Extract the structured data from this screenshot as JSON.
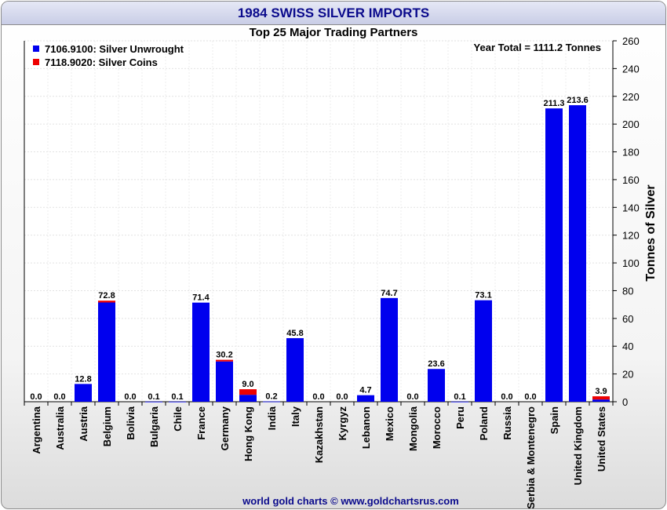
{
  "title": "1984 SWISS SILVER IMPORTS",
  "subtitle": "Top 25 Major Trading Partners",
  "year_total": "Year Total = 1111.2 Tonnes",
  "footer": "world gold charts © www.goldchartsrus.com",
  "colors": {
    "unwrought": "#0000ee",
    "coins": "#ee0000",
    "title_text": "#0a0a8c"
  },
  "chart_data": {
    "type": "bar",
    "stacked": true,
    "ylabel": "Tonnes of Silver",
    "ylim": [
      0,
      260
    ],
    "ytick_step": 20,
    "y_axis_side": "right",
    "grid": true,
    "legend_position": "top-left",
    "categories": [
      "Argentina",
      "Australia",
      "Austria",
      "Belgium",
      "Bolivia",
      "Bulgaria",
      "Chile",
      "France",
      "Germany",
      "Hong Kong",
      "India",
      "Italy",
      "Kazakhstan",
      "Kyrgyz",
      "Lebanon",
      "Mexico",
      "Mongolia",
      "Morocco",
      "Peru",
      "Poland",
      "Russia",
      "Serbia & Montenegro",
      "Spain",
      "United Kingdom",
      "United States"
    ],
    "series": [
      {
        "name": "7106.9100: Silver Unwrought",
        "color": "#0000ee",
        "values": [
          0.0,
          0.0,
          12.8,
          71.5,
          0.0,
          0.1,
          0.1,
          71.4,
          29.0,
          5.0,
          0.2,
          45.8,
          0.0,
          0.0,
          4.7,
          74.7,
          0.0,
          23.6,
          0.1,
          73.1,
          0.0,
          0.0,
          211.3,
          213.6,
          1.6
        ]
      },
      {
        "name": "7118.9020: Silver Coins",
        "color": "#ee0000",
        "values": [
          0.0,
          0.0,
          0.0,
          1.3,
          0.0,
          0.0,
          0.0,
          0.0,
          1.2,
          4.0,
          0.0,
          0.0,
          0.0,
          0.0,
          0.0,
          0.0,
          0.0,
          0.0,
          0.0,
          0.0,
          0.0,
          0.0,
          0.0,
          0.0,
          2.3
        ]
      }
    ],
    "totals": [
      "0.0",
      "0.0",
      "12.8",
      "72.8",
      "0.0",
      "0.1",
      "0.1",
      "71.4",
      "30.2",
      "9.0",
      "0.2",
      "45.8",
      "0.0",
      "0.0",
      "4.7",
      "74.7",
      "0.0",
      "23.6",
      "0.1",
      "73.1",
      "0.0",
      "0.0",
      "211.3",
      "213.6",
      "3.9"
    ]
  }
}
